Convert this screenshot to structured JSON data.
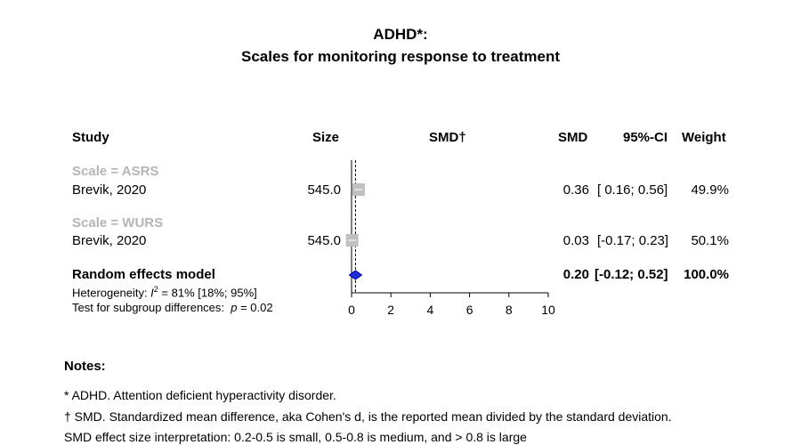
{
  "title_line1": "ADHD*:",
  "title_line2": "Scales for monitoring response to treatment",
  "headers": {
    "study": "Study",
    "size": "Size",
    "plot": "SMD†",
    "smd": "SMD",
    "ci": "95%-CI",
    "weight": "Weight"
  },
  "subgroups": [
    {
      "label": "Scale = ASRS",
      "study": "Brevik, 2020",
      "size": "545.0",
      "smd": "0.36",
      "ci": "[ 0.16; 0.56]",
      "weight": "49.9%"
    },
    {
      "label": "Scale = WURS",
      "study": "Brevik, 2020",
      "size": "545.0",
      "smd": "0.03",
      "ci": "[-0.17; 0.23]",
      "weight": "50.1%"
    }
  ],
  "pooled": {
    "label": "Random effects model",
    "smd": "0.20",
    "ci": "[-0.12; 0.52]",
    "weight": "100.0%"
  },
  "heterogeneity_prefix": "Heterogeneity: ",
  "heterogeneity_i": "I",
  "heterogeneity_sup": "2",
  "heterogeneity_rest": " = 81% [18%; 95%]",
  "subgroup_test_prefix": "Test for subgroup differences:  ",
  "subgroup_test_p": "p",
  "subgroup_test_rest": " = 0.02",
  "chart_data": {
    "type": "forest",
    "x_ticks": [
      "0",
      "2",
      "4",
      "6",
      "8",
      "10"
    ],
    "xlim": [
      0,
      10
    ],
    "reference_line": 0,
    "studies": [
      {
        "subgroup": "Scale = ASRS",
        "study": "Brevik, 2020",
        "smd": 0.36,
        "ci_low": 0.16,
        "ci_high": 0.56,
        "weight": 49.9
      },
      {
        "subgroup": "Scale = WURS",
        "study": "Brevik, 2020",
        "smd": 0.03,
        "ci_low": -0.17,
        "ci_high": 0.23,
        "weight": 50.1
      }
    ],
    "pooled": {
      "smd": 0.2,
      "ci_low": -0.12,
      "ci_high": 0.52
    }
  },
  "notes": {
    "heading": "Notes:",
    "lines": [
      "* ADHD. Attention deficient hyperactivity disorder.",
      "† SMD. Standardized mean difference, aka Cohen's d, is the reported mean divided by the standard deviation.",
      "SMD effect size interpretation: 0.2-0.5 is small, 0.5-0.8 is medium, and > 0.8 is large"
    ]
  }
}
